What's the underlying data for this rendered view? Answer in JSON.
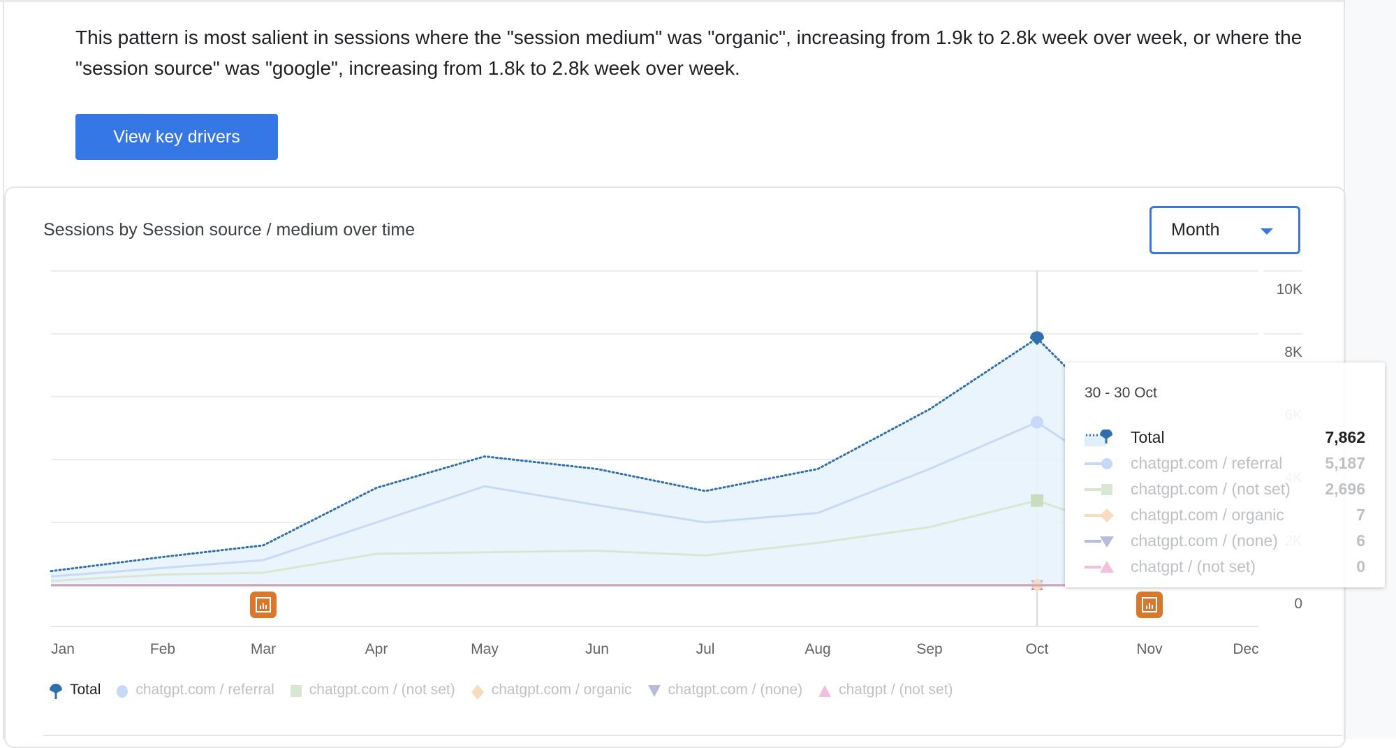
{
  "insight": {
    "text": "This pattern is most salient in sessions where the \"session medium\" was \"organic\", increasing from 1.9k to 2.8k week over week, or where the \"session source\" was \"google\", increasing from 1.8k to 2.8k week over week.",
    "button_label": "View key drivers"
  },
  "card": {
    "title": "Sessions by Session source / medium over time",
    "granularity_selected": "Month"
  },
  "colors": {
    "accent": "#3677e6",
    "total": "#2f6fab",
    "area_fill": "#e8f3fd",
    "referral": "#c6d9f6",
    "not_set": "#d8e6d2",
    "organic": "#f7dcbf",
    "none": "#b9bcd9",
    "chatgpt_not_set": "#f1c0dc",
    "annotation": "#d9782d"
  },
  "chart_data": {
    "type": "line",
    "categories": [
      "Jan",
      "Feb",
      "Mar",
      "Apr",
      "May",
      "Jun",
      "Jul",
      "Aug",
      "Sep",
      "Oct",
      "Nov",
      "Dec"
    ],
    "y_ticks": [
      "0",
      "2K",
      "4K",
      "6K",
      "8K",
      "10K"
    ],
    "ylim": [
      0,
      10000
    ],
    "grid": true,
    "legend_position": "bottom-left",
    "series": [
      {
        "name": "Total",
        "style": "dotted",
        "marker": "pin",
        "values": [
          450,
          900,
          1270,
          3100,
          4100,
          3700,
          3000,
          3700,
          5600,
          7862,
          null,
          null
        ]
      },
      {
        "name": "chatgpt.com / referral",
        "marker": "circle",
        "values": [
          280,
          550,
          800,
          2000,
          3150,
          2550,
          2000,
          2300,
          3700,
          5187,
          null,
          null
        ]
      },
      {
        "name": "chatgpt.com / (not set)",
        "marker": "square",
        "values": [
          140,
          340,
          400,
          1000,
          1050,
          1100,
          950,
          1350,
          1850,
          2696,
          null,
          null
        ]
      },
      {
        "name": "chatgpt.com / organic",
        "marker": "diamond",
        "values": [
          5,
          5,
          6,
          6,
          7,
          7,
          6,
          6,
          7,
          7,
          null,
          null
        ]
      },
      {
        "name": "chatgpt.com / (none)",
        "marker": "triangle-down",
        "values": [
          4,
          4,
          5,
          5,
          6,
          6,
          5,
          5,
          6,
          6,
          null,
          null
        ]
      },
      {
        "name": "chatgpt / (not set)",
        "marker": "triangle-up",
        "values": [
          0,
          0,
          0,
          0,
          0,
          0,
          0,
          0,
          0,
          0,
          null,
          null
        ]
      }
    ],
    "annotations": [
      "Mar",
      "Nov"
    ],
    "hover_category": "Oct"
  },
  "tooltip": {
    "date": "30 - 30 Oct",
    "rows": [
      {
        "label": "Total",
        "value": "7,862"
      },
      {
        "label": "chatgpt.com / referral",
        "value": "5,187"
      },
      {
        "label": "chatgpt.com / (not set)",
        "value": "2,696"
      },
      {
        "label": "chatgpt.com / organic",
        "value": "7"
      },
      {
        "label": "chatgpt.com / (none)",
        "value": "6"
      },
      {
        "label": "chatgpt / (not set)",
        "value": "0"
      }
    ]
  },
  "legend": [
    {
      "label": "Total"
    },
    {
      "label": "chatgpt.com / referral"
    },
    {
      "label": "chatgpt.com / (not set)"
    },
    {
      "label": "chatgpt.com / organic"
    },
    {
      "label": "chatgpt.com / (none)"
    },
    {
      "label": "chatgpt / (not set)"
    }
  ]
}
